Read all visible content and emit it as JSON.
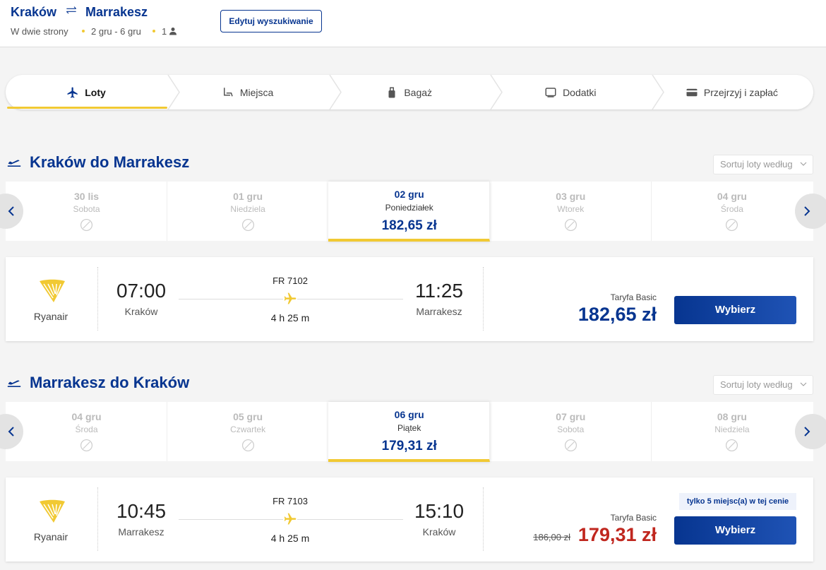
{
  "header": {
    "origin": "Kraków",
    "destination": "Marrakesz",
    "trip_type": "W dwie strony",
    "dates": "2 gru - 6 gru",
    "passengers": "1",
    "edit_button": "Edytuj wyszukiwanie"
  },
  "steps": [
    "Loty",
    "Miejsca",
    "Bagaż",
    "Dodatki",
    "Przejrzyj i zapłać"
  ],
  "sections": [
    {
      "title": "Kraków do Marrakesz",
      "sort": "Sortuj loty według",
      "dates": [
        {
          "date": "30 lis",
          "day": "Sobota"
        },
        {
          "date": "01 gru",
          "day": "Niedziela"
        },
        {
          "date": "02 gru",
          "day": "Poniedziałek",
          "price": "182,65 zł"
        },
        {
          "date": "03 gru",
          "day": "Wtorek"
        },
        {
          "date": "04 gru",
          "day": "Środa"
        }
      ],
      "flight": {
        "airline": "Ryanair",
        "departure_time": "07:00",
        "departure_city": "Kraków",
        "flight_number": "FR 7102",
        "duration": "4 h 25 m",
        "arrival_time": "11:25",
        "arrival_city": "Marrakesz",
        "fare": "Taryfa Basic",
        "price": "182,65 zł",
        "button": "Wybierz"
      }
    },
    {
      "title": "Marrakesz do Kraków",
      "sort": "Sortuj loty według",
      "dates": [
        {
          "date": "04 gru",
          "day": "Środa"
        },
        {
          "date": "05 gru",
          "day": "Czwartek"
        },
        {
          "date": "06 gru",
          "day": "Piątek",
          "price": "179,31 zł"
        },
        {
          "date": "07 gru",
          "day": "Sobota"
        },
        {
          "date": "08 gru",
          "day": "Niedziela"
        }
      ],
      "flight": {
        "airline": "Ryanair",
        "departure_time": "10:45",
        "departure_city": "Marrakesz",
        "flight_number": "FR 7103",
        "duration": "4 h 25 m",
        "arrival_time": "15:10",
        "arrival_city": "Kraków",
        "fare": "Taryfa Basic",
        "notice": "tylko 5 miejsc(a) w tej cenie",
        "old_price": "186,00 zł",
        "price": "179,31 zł",
        "button": "Wybierz"
      }
    }
  ]
}
